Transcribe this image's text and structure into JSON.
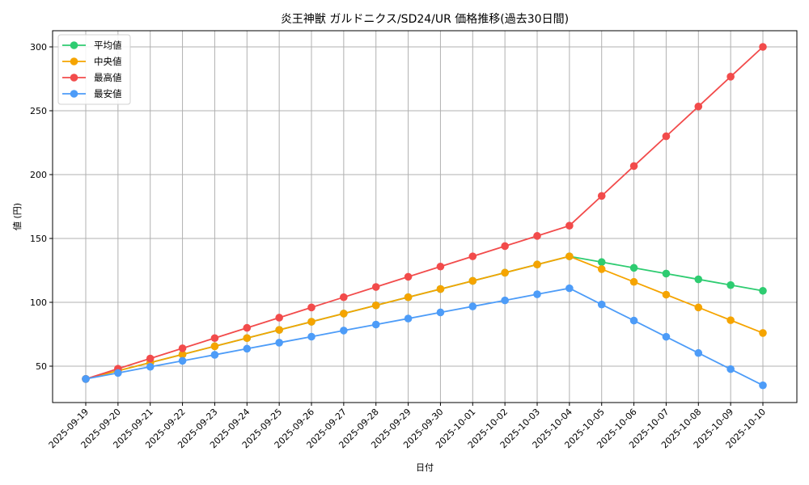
{
  "chart_data": {
    "type": "line",
    "title": "炎王神獣 ガルドニクス/SD24/UR 価格推移(過去30日間)",
    "xlabel": "日付",
    "ylabel": "値 (円)",
    "ylim": [
      22,
      313
    ],
    "yticks": [
      50,
      100,
      150,
      200,
      250,
      300
    ],
    "grid": true,
    "legend_position": "upper left",
    "categories": [
      "2025-09-19",
      "2025-09-20",
      "2025-09-21",
      "2025-09-22",
      "2025-09-23",
      "2025-09-24",
      "2025-09-25",
      "2025-09-26",
      "2025-09-27",
      "2025-09-28",
      "2025-09-29",
      "2025-09-30",
      "2025-10-01",
      "2025-10-02",
      "2025-10-03",
      "2025-10-04",
      "2025-10-05",
      "2025-10-06",
      "2025-10-07",
      "2025-10-08",
      "2025-10-09",
      "2025-10-10"
    ],
    "series": [
      {
        "name": "平均値",
        "color": "#2ecc71",
        "values": [
          40,
          46.4,
          52.8,
          59.2,
          65.6,
          72,
          78.4,
          84.8,
          91.2,
          97.6,
          104,
          110.4,
          116.8,
          123.2,
          129.6,
          136,
          131.5,
          127,
          122.5,
          118,
          113.5,
          109
        ]
      },
      {
        "name": "中央値",
        "color": "#f5a400",
        "values": [
          40,
          46.4,
          52.8,
          59.2,
          65.6,
          72,
          78.4,
          84.8,
          91.2,
          97.6,
          104,
          110.4,
          116.8,
          123.2,
          129.6,
          136,
          126,
          116,
          106,
          96,
          86,
          76
        ]
      },
      {
        "name": "最高値",
        "color": "#f24b4b",
        "values": [
          40,
          48,
          56,
          64,
          72,
          80,
          88,
          96,
          104,
          112,
          120,
          128,
          136,
          144,
          152,
          160,
          183.3,
          206.7,
          230,
          253.3,
          276.7,
          300
        ]
      },
      {
        "name": "最安値",
        "color": "#4d9cf8",
        "values": [
          40,
          44.7,
          49.5,
          54.2,
          58.9,
          63.7,
          68.4,
          73.1,
          77.9,
          82.6,
          87.3,
          92.1,
          96.8,
          101.5,
          106.3,
          111,
          98.3,
          85.7,
          73,
          60.3,
          47.7,
          35
        ]
      }
    ]
  }
}
